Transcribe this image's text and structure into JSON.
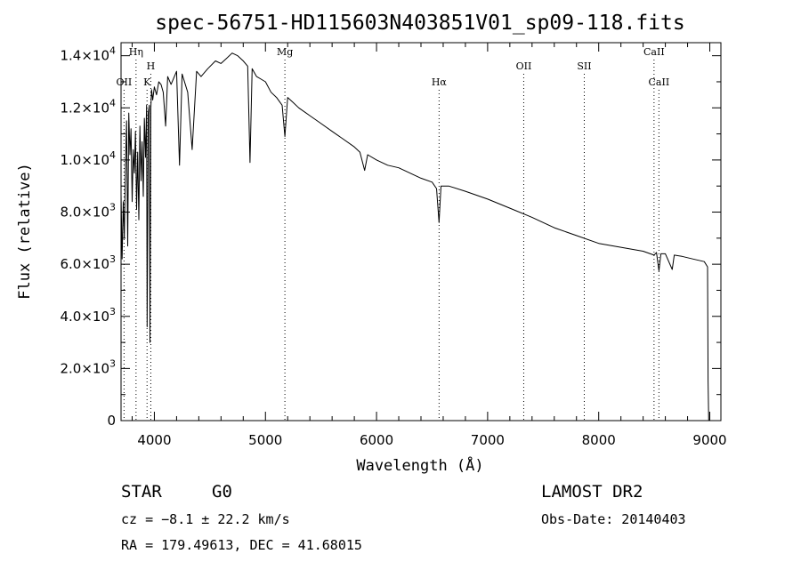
{
  "chart_data": {
    "type": "line",
    "title": "spec-56751-HD115603N403851V01_sp09-118.fits",
    "xlabel": "Wavelength (Å)",
    "ylabel": "Flux (relative)",
    "xlim": [
      3700,
      9100
    ],
    "ylim": [
      0,
      14500
    ],
    "x_ticks": [
      4000,
      5000,
      6000,
      7000,
      8000,
      9000
    ],
    "x_tick_labels": [
      "4000",
      "5000",
      "6000",
      "7000",
      "8000",
      "9000"
    ],
    "y_ticks": [
      0,
      2000,
      4000,
      6000,
      8000,
      10000,
      12000,
      14000
    ],
    "y_tick_labels": [
      {
        "mant": "0",
        "exp": ""
      },
      {
        "mant": "2.0×10",
        "exp": "3"
      },
      {
        "mant": "4.0×10",
        "exp": "3"
      },
      {
        "mant": "6.0×10",
        "exp": "3"
      },
      {
        "mant": "8.0×10",
        "exp": "3"
      },
      {
        "mant": "1.0×10",
        "exp": "4"
      },
      {
        "mant": "1.2×10",
        "exp": "4"
      },
      {
        "mant": "1.4×10",
        "exp": "4"
      }
    ],
    "series": [
      {
        "x": [
          3700,
          3710,
          3720,
          3730,
          3740,
          3750,
          3760,
          3770,
          3780,
          3790,
          3800,
          3810,
          3820,
          3830,
          3840,
          3850,
          3860,
          3870,
          3880,
          3890,
          3900,
          3910,
          3920,
          3930,
          3935,
          3945,
          3955,
          3960,
          3968,
          3975,
          3985,
          4000,
          4020,
          4040,
          4060,
          4080,
          4101,
          4120,
          4150,
          4200,
          4226,
          4250,
          4300,
          4340,
          4380,
          4420,
          4480,
          4550,
          4600,
          4650,
          4700,
          4750,
          4800,
          4840,
          4861,
          4880,
          4920,
          4960,
          5000,
          5050,
          5100,
          5150,
          5175,
          5200,
          5250,
          5300,
          5400,
          5500,
          5600,
          5700,
          5800,
          5850,
          5893,
          5920,
          6000,
          6100,
          6200,
          6300,
          6400,
          6500,
          6540,
          6563,
          6580,
          6650,
          6800,
          7000,
          7200,
          7400,
          7600,
          7800,
          8000,
          8200,
          8400,
          8498,
          8520,
          8542,
          8560,
          8600,
          8662,
          8680,
          8750,
          8850,
          8950,
          8980,
          8985,
          8990
        ],
        "y": [
          8700,
          6200,
          8400,
          7000,
          9800,
          11500,
          6700,
          11800,
          10200,
          11200,
          8400,
          10400,
          9500,
          11100,
          8100,
          10300,
          7700,
          11300,
          9200,
          10700,
          8600,
          11600,
          10100,
          12100,
          3600,
          11800,
          12100,
          3000,
          12000,
          12700,
          12300,
          12800,
          12500,
          13000,
          12900,
          12600,
          11300,
          13200,
          12900,
          13400,
          9800,
          13300,
          12600,
          10400,
          13400,
          13200,
          13500,
          13800,
          13700,
          13900,
          14100,
          14000,
          13800,
          13600,
          9900,
          13500,
          13200,
          13100,
          13000,
          12600,
          12400,
          12100,
          10900,
          12400,
          12200,
          12000,
          11700,
          11400,
          11100,
          10800,
          10500,
          10300,
          9600,
          10200,
          10000,
          9800,
          9700,
          9500,
          9300,
          9150,
          8900,
          7600,
          9000,
          9000,
          8800,
          8500,
          8150,
          7800,
          7400,
          7100,
          6800,
          6650,
          6500,
          6350,
          6450,
          5750,
          6400,
          6400,
          5800,
          6350,
          6300,
          6200,
          6100,
          5900,
          1500,
          0
        ]
      }
    ],
    "line_markers": [
      {
        "label": "OII",
        "x": 3727,
        "row": "low"
      },
      {
        "label": "Hη",
        "x": 3835,
        "row": "high"
      },
      {
        "label": "K",
        "x": 3934,
        "row": "low"
      },
      {
        "label": "H",
        "x": 3968,
        "row": "mid"
      },
      {
        "label": "Mg",
        "x": 5175,
        "row": "high"
      },
      {
        "label": "Hα",
        "x": 6563,
        "row": "low"
      },
      {
        "label": "OII",
        "x": 7325,
        "row": "mid"
      },
      {
        "label": "SII",
        "x": 7870,
        "row": "mid"
      },
      {
        "label": "CaII",
        "x": 8498,
        "row": "high"
      },
      {
        "label": "CaII",
        "x": 8542,
        "row": "low"
      }
    ],
    "grid": false,
    "legend": "none"
  },
  "info": {
    "class": "STAR",
    "subclass": "G0",
    "cz": "cz = −8.1 ± 22.2 km/s",
    "coords": "RA = 179.49613, DEC =  41.68015",
    "survey": "LAMOST DR2",
    "obs_date": "Obs-Date: 20140403"
  }
}
